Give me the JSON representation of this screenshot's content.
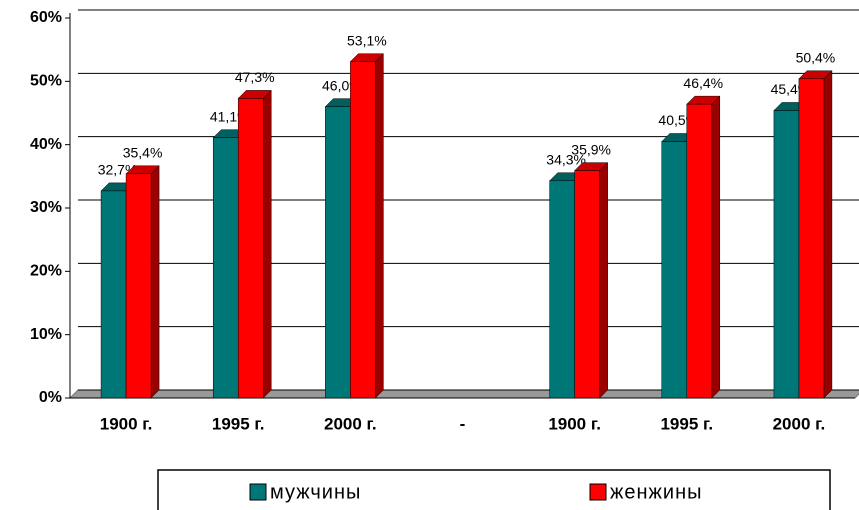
{
  "chart_data": {
    "type": "bar",
    "categories": [
      "1900 г.",
      "1995 г.",
      "2000 г.",
      "-",
      "1900 г.",
      "1995 г.",
      "2000 г."
    ],
    "series": [
      {
        "name": "мужчины",
        "color": "#007777",
        "values": [
          32.7,
          41.1,
          46.0,
          null,
          34.3,
          40.5,
          45.4
        ],
        "value_labels": [
          "32,7%",
          "41,1%",
          "46,0%",
          null,
          "34,3%",
          "40,5%",
          "45,4%"
        ]
      },
      {
        "name": "женжины",
        "color": "#ff0000",
        "values": [
          35.4,
          47.3,
          53.1,
          null,
          35.9,
          46.4,
          50.4
        ],
        "value_labels": [
          "35,4%",
          "47,3%",
          "53,1%",
          null,
          "35,9%",
          "46,4%",
          "50,4%"
        ]
      }
    ],
    "ylim": [
      0,
      60
    ],
    "yticks": [
      {
        "value": 0,
        "label": "0%"
      },
      {
        "value": 10,
        "label": "10%"
      },
      {
        "value": 20,
        "label": "20%"
      },
      {
        "value": 30,
        "label": "30%"
      },
      {
        "value": 40,
        "label": "40%"
      },
      {
        "value": 50,
        "label": "50%"
      },
      {
        "value": 60,
        "label": "60%"
      }
    ],
    "grid": true
  }
}
